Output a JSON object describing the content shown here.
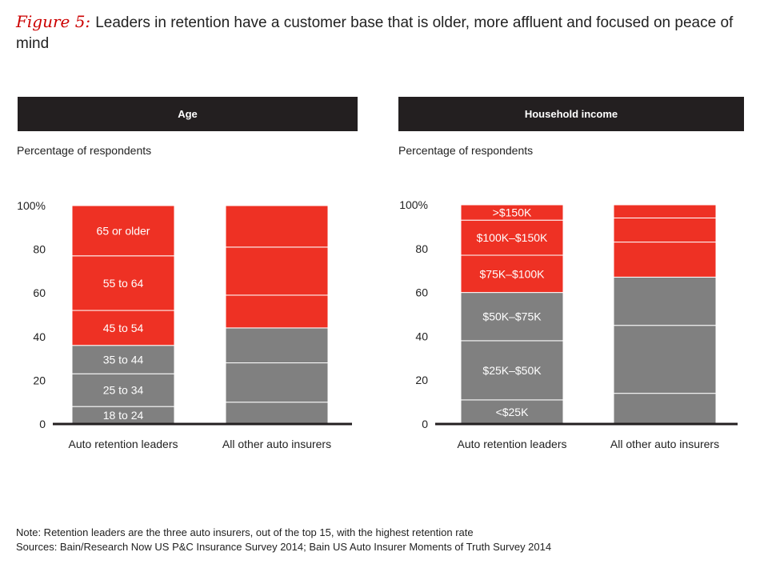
{
  "figure": {
    "label": "Figure 5:",
    "title": "Leaders in retention have a customer base that is older, more affluent and focused on peace of mind"
  },
  "colors": {
    "red": "#ee3124",
    "gray": "#808080",
    "header_bg": "#231f20",
    "axis": "#231f20"
  },
  "chart_data": [
    {
      "type": "bar",
      "stacked": true,
      "title": "Age",
      "ylabel": "Percentage of respondents",
      "ylim": [
        0,
        100
      ],
      "yticks": [
        "0",
        "20",
        "40",
        "60",
        "80",
        "100%"
      ],
      "categories": [
        "Auto retention leaders",
        "All other auto insurers"
      ],
      "series": [
        {
          "name": "18 to 24",
          "label": "18 to 24",
          "color": "gray",
          "values": [
            8,
            10
          ]
        },
        {
          "name": "25 to 34",
          "label": "25 to 34",
          "color": "gray",
          "values": [
            15,
            18
          ]
        },
        {
          "name": "35 to 44",
          "label": "35 to 44",
          "color": "gray",
          "values": [
            13,
            16
          ]
        },
        {
          "name": "45 to 54",
          "label": "45 to 54",
          "color": "red",
          "values": [
            16,
            15
          ]
        },
        {
          "name": "55 to 64",
          "label": "55 to 64",
          "color": "red",
          "values": [
            25,
            22
          ]
        },
        {
          "name": "65 or older",
          "label": "65 or older",
          "color": "red",
          "values": [
            23,
            19
          ]
        }
      ]
    },
    {
      "type": "bar",
      "stacked": true,
      "title": "Household income",
      "ylabel": "Percentage of respondents",
      "ylim": [
        0,
        100
      ],
      "yticks": [
        "0",
        "20",
        "40",
        "60",
        "80",
        "100%"
      ],
      "categories": [
        "Auto retention leaders",
        "All other auto insurers"
      ],
      "series": [
        {
          "name": "<$25K",
          "label": "<$25K",
          "color": "gray",
          "values": [
            11,
            14
          ]
        },
        {
          "name": "$25K–$50K",
          "label": "$25K–$50K",
          "color": "gray",
          "values": [
            27,
            31
          ]
        },
        {
          "name": "$50K–$75K",
          "label": "$50K–$75K",
          "color": "gray",
          "values": [
            22,
            22
          ]
        },
        {
          "name": "$75K–$100K",
          "label": "$75K–$100K",
          "color": "red",
          "values": [
            17,
            16
          ]
        },
        {
          "name": "$100K–$150K",
          "label": "$100K–$150K",
          "color": "red",
          "values": [
            16,
            11
          ]
        },
        {
          "name": ">$150K",
          "label": ">$150K",
          "color": "red",
          "values": [
            7,
            6
          ]
        }
      ]
    }
  ],
  "notes": {
    "note": "Note: Retention leaders are the three auto insurers, out of the top 15, with the highest retention rate",
    "sources": "Sources: Bain/Research Now US P&C Insurance Survey 2014; Bain US Auto Insurer Moments of Truth Survey 2014"
  }
}
